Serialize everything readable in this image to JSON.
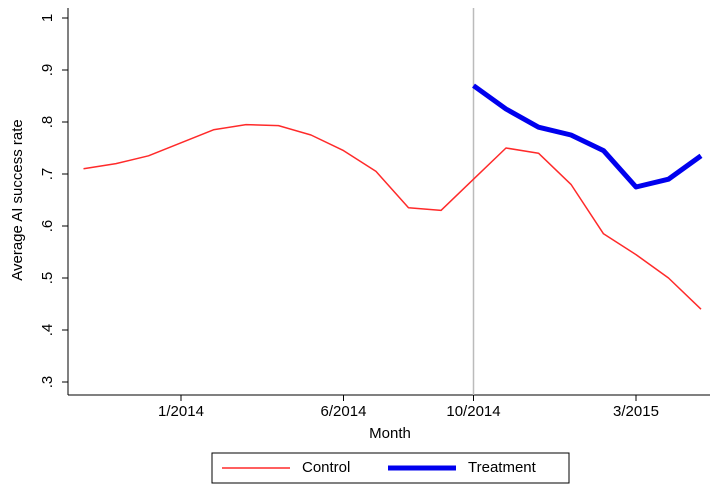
{
  "chart_data": {
    "type": "line",
    "x_label": "Month",
    "y_label": "Average AI success rate",
    "x": [
      "2013-10",
      "2013-11",
      "2013-12",
      "2014-01",
      "2014-02",
      "2014-03",
      "2014-04",
      "2014-05",
      "2014-06",
      "2014-07",
      "2014-08",
      "2014-09",
      "2014-10",
      "2014-11",
      "2014-12",
      "2015-01",
      "2015-02",
      "2015-03",
      "2015-04",
      "2015-05"
    ],
    "series": [
      {
        "name": "Control",
        "color": "#ff2a2a",
        "width": 1.5,
        "values": [
          0.71,
          0.72,
          0.735,
          0.76,
          0.785,
          0.795,
          0.793,
          0.775,
          0.745,
          0.705,
          0.635,
          0.63,
          0.69,
          0.75,
          0.74,
          0.68,
          0.585,
          0.545,
          0.5,
          0.44
        ]
      },
      {
        "name": "Treatment",
        "color": "#0000ee",
        "width": 5,
        "values": [
          null,
          null,
          null,
          null,
          null,
          null,
          null,
          null,
          null,
          null,
          null,
          null,
          0.87,
          0.825,
          0.79,
          0.775,
          0.745,
          0.675,
          0.69,
          0.735
        ]
      }
    ],
    "xticks": [
      {
        "value": "2014-01",
        "label": "1/2014"
      },
      {
        "value": "2014-06",
        "label": "6/2014"
      },
      {
        "value": "2014-10",
        "label": "10/2014"
      },
      {
        "value": "2015-03",
        "label": "3/2015"
      }
    ],
    "ylim": [
      0.3,
      1
    ],
    "yticks": [
      {
        "value": 0.3,
        "label": ".3"
      },
      {
        "value": 0.4,
        "label": ".4"
      },
      {
        "value": 0.5,
        "label": ".5"
      },
      {
        "value": 0.6,
        "label": ".6"
      },
      {
        "value": 0.7,
        "label": ".7"
      },
      {
        "value": 0.8,
        "label": ".8"
      },
      {
        "value": 0.9,
        "label": ".9"
      },
      1
    ],
    "vline": "2014-10",
    "vline_color": "#bbbbbb"
  }
}
